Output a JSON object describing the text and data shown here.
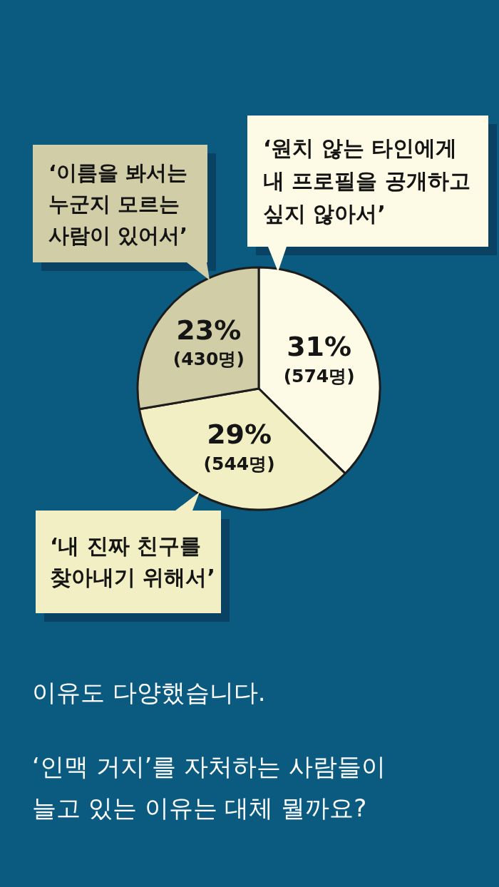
{
  "chart_data": {
    "type": "pie",
    "categories": [
      "‘원치 않는 타인에게 내 프로필을 공개하고 싶지 않아서’",
      "‘내 진짜 친구를 찾아내기 위해서’",
      "‘이름을 봐서는 누군지 모르는 사람이 있어서’"
    ],
    "values": [
      31,
      29,
      23
    ],
    "colors": [
      "#fdfbe5",
      "#f1efc3",
      "#d0cda7"
    ],
    "value_labels": [
      "31% (574명)",
      "29% (544명)",
      "23% (430명)"
    ],
    "annotations": [
      "이유도 다양했습니다.",
      "‘인맥 거지’를 자처하는 사람들이 늘고 있는 이유는 대체 뭘까요?"
    ]
  }
}
